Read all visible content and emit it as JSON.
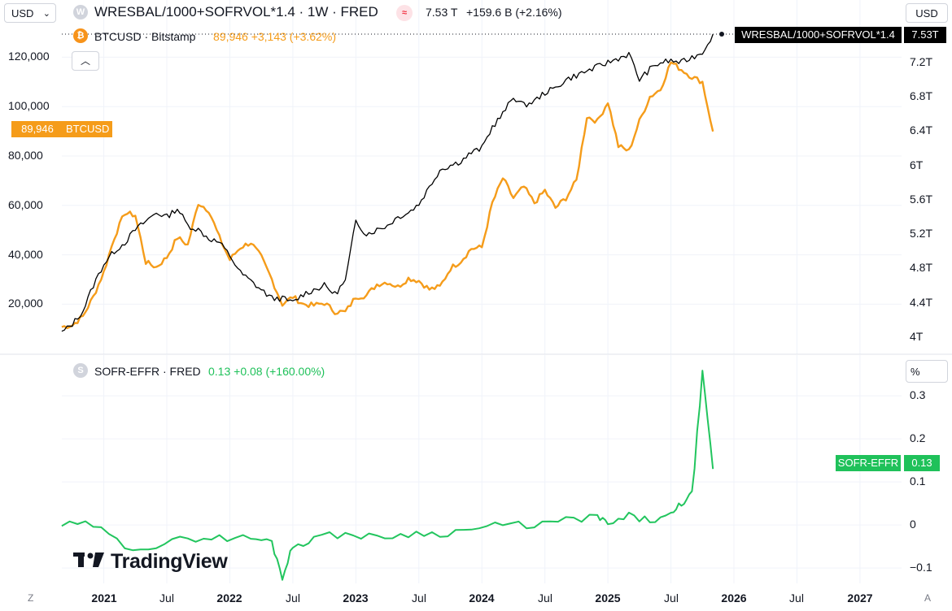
{
  "header": {
    "currency": "USD",
    "main_symbol": "WRESBAL/1000+SOFRVOL*1.4 · 1W · FRED",
    "main_last": "7.53 T",
    "main_change": "+159.6 B (+2.16%)",
    "btc_symbol": "BTCUSD · Bitstamp",
    "btc_values": "89,946 +3,143 (+3.62%)",
    "main_icon_letter": "W",
    "btc_icon_letter": "₿",
    "collapse_icon": "chevron-up-icon"
  },
  "right_axis_unit": "USD",
  "lower_axis_unit": "%",
  "lower_header": {
    "symbol": "SOFR-EFFR · FRED",
    "values": "0.13 +0.08 (+160.00%)",
    "icon_letter": "S"
  },
  "tags": {
    "btc_price": "89,946",
    "btc_name": "BTCUSD",
    "main_name": "WRESBAL/1000+SOFRVOL*1.4",
    "main_price": "7.53T",
    "spread_name": "SOFR-EFFR",
    "spread_price": "0.13"
  },
  "left_axis_ticks": [
    "120,000",
    "100,000",
    "80,000",
    "60,000",
    "40,000",
    "20,000"
  ],
  "right_axis_ticks": [
    "7.2T",
    "6.8T",
    "6.4T",
    "6T",
    "5.6T",
    "5.2T",
    "4.8T",
    "4.4T",
    "4T"
  ],
  "lower_axis_ticks": [
    "0.3",
    "0.2",
    "0.1",
    "0",
    "−0.1"
  ],
  "x_axis_ticks": [
    {
      "label": "2021",
      "bold": true
    },
    {
      "label": "Jul",
      "bold": false
    },
    {
      "label": "2022",
      "bold": true
    },
    {
      "label": "Jul",
      "bold": false
    },
    {
      "label": "2023",
      "bold": true
    },
    {
      "label": "Jul",
      "bold": false
    },
    {
      "label": "2024",
      "bold": true
    },
    {
      "label": "Jul",
      "bold": false
    },
    {
      "label": "2025",
      "bold": true
    },
    {
      "label": "Jul",
      "bold": false
    },
    {
      "label": "2026",
      "bold": true
    },
    {
      "label": "Jul",
      "bold": false
    },
    {
      "label": "2027",
      "bold": true
    }
  ],
  "logo_text": "TradingView",
  "corner_left": "Z",
  "corner_right": "A",
  "colors": {
    "btc": "#f59c1a",
    "main": "#000000",
    "spread": "#22c55e",
    "btc_tag": "#f59c1a",
    "spread_tag": "#1fc15a",
    "grid": "#f0f3fa"
  },
  "chart_data": [
    {
      "type": "line",
      "title": "",
      "x": [
        "2020-09",
        "2020-10",
        "2020-11",
        "2020-12",
        "2021-01",
        "2021-02",
        "2021-03",
        "2021-04",
        "2021-05",
        "2021-06",
        "2021-07",
        "2021-08",
        "2021-09",
        "2021-10",
        "2021-11",
        "2021-12",
        "2022-01",
        "2022-02",
        "2022-03",
        "2022-04",
        "2022-05",
        "2022-06",
        "2022-07",
        "2022-08",
        "2022-09",
        "2022-10",
        "2022-11",
        "2022-12",
        "2023-01",
        "2023-02",
        "2023-03",
        "2023-04",
        "2023-05",
        "2023-06",
        "2023-07",
        "2023-08",
        "2023-09",
        "2023-10",
        "2023-11",
        "2023-12",
        "2024-01",
        "2024-02",
        "2024-03",
        "2024-04",
        "2024-05",
        "2024-06",
        "2024-07",
        "2024-08",
        "2024-09",
        "2024-10",
        "2024-11",
        "2024-12",
        "2025-01",
        "2025-02",
        "2025-03",
        "2025-04",
        "2025-05",
        "2025-06",
        "2025-07",
        "2025-08",
        "2025-09",
        "2025-10",
        "2025-11"
      ],
      "series": [
        {
          "name": "BTCUSD",
          "axis": "left",
          "values": [
            10800,
            11500,
            15000,
            23000,
            33000,
            47000,
            57000,
            56000,
            37000,
            35000,
            39000,
            47000,
            44000,
            61000,
            58000,
            47000,
            38000,
            43000,
            45000,
            39000,
            30000,
            20000,
            23000,
            20000,
            19500,
            20500,
            17000,
            16800,
            23000,
            23500,
            28000,
            29000,
            27000,
            30500,
            29500,
            26000,
            27000,
            34500,
            37500,
            42500,
            43000,
            61000,
            71000,
            63000,
            67500,
            61000,
            66000,
            59000,
            63000,
            70000,
            96000,
            94000,
            102000,
            84000,
            82000,
            94000,
            104000,
            107000,
            118000,
            115000,
            112000,
            110000,
            89946
          ]
        },
        {
          "name": "WRESBAL/1000+SOFRVOL*1.4",
          "axis": "right",
          "values": [
            4.05,
            4.15,
            4.3,
            4.6,
            4.85,
            5.0,
            5.1,
            5.25,
            5.35,
            5.45,
            5.4,
            5.5,
            5.3,
            5.25,
            5.15,
            5.1,
            4.95,
            4.75,
            4.65,
            4.55,
            4.45,
            4.45,
            4.4,
            4.5,
            4.55,
            4.6,
            4.5,
            4.65,
            5.35,
            5.2,
            5.25,
            5.3,
            5.4,
            5.45,
            5.55,
            5.75,
            5.95,
            6.0,
            6.05,
            6.15,
            6.2,
            6.45,
            6.6,
            6.8,
            6.7,
            6.75,
            6.85,
            6.9,
            7.0,
            7.05,
            7.1,
            7.15,
            7.2,
            7.25,
            7.3,
            7.0,
            7.12,
            7.2,
            7.22,
            7.2,
            7.26,
            7.32,
            7.53
          ]
        }
      ],
      "left_ylim": [
        5000,
        130000
      ],
      "right_ylim": [
        3.95,
        7.55
      ],
      "grid": true,
      "legend": "top-left"
    },
    {
      "type": "line",
      "title": "",
      "x": [
        "2020-09",
        "2020-12",
        "2021-03",
        "2021-06",
        "2021-09",
        "2021-12",
        "2022-03",
        "2022-05",
        "2022-06",
        "2022-07",
        "2022-09",
        "2022-12",
        "2023-03",
        "2023-06",
        "2023-09",
        "2023-12",
        "2024-03",
        "2024-06",
        "2024-09",
        "2024-12",
        "2025-01",
        "2025-03",
        "2025-05",
        "2025-07",
        "2025-08",
        "2025-09",
        "2025-10",
        "2025-11"
      ],
      "series": [
        {
          "name": "SOFR-EFFR",
          "values": [
            0.0,
            0.0,
            -0.05,
            -0.05,
            -0.03,
            -0.03,
            -0.03,
            -0.04,
            -0.12,
            -0.05,
            -0.03,
            -0.02,
            -0.03,
            -0.02,
            -0.02,
            -0.01,
            0.0,
            0.0,
            0.01,
            0.02,
            0.0,
            0.02,
            0.01,
            0.02,
            0.05,
            0.07,
            0.35,
            0.13
          ]
        }
      ],
      "ylim": [
        -0.13,
        0.37
      ],
      "grid": true
    }
  ]
}
